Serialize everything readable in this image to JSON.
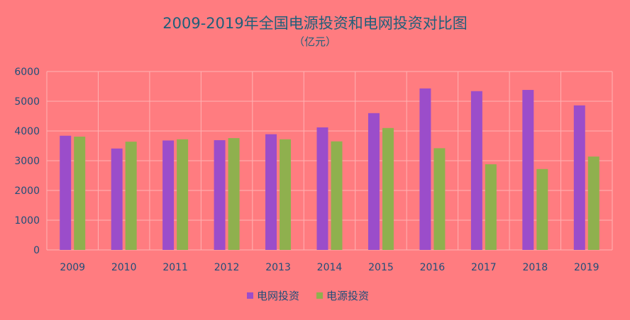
{
  "chart_data": {
    "type": "bar",
    "title": "2009-2019年全国电源投资和电网投资对比图",
    "subtitle": "（亿元）",
    "categories": [
      "2009",
      "2010",
      "2011",
      "2012",
      "2013",
      "2014",
      "2015",
      "2016",
      "2017",
      "2018",
      "2019"
    ],
    "series": [
      {
        "name": "电网投资",
        "color": "#9b4dca",
        "values": [
          3840,
          3410,
          3680,
          3690,
          3890,
          4120,
          4600,
          5430,
          5340,
          5380,
          4860
        ]
      },
      {
        "name": "电源投资",
        "color": "#8fb04e",
        "values": [
          3810,
          3640,
          3720,
          3760,
          3720,
          3650,
          4100,
          3420,
          2880,
          2720,
          3140
        ]
      }
    ],
    "yticks": [
      "0",
      "1000",
      "2000",
      "3000",
      "4000",
      "5000",
      "6000"
    ],
    "ylim": [
      0,
      6000
    ],
    "grid": true,
    "legend_position": "bottom"
  }
}
